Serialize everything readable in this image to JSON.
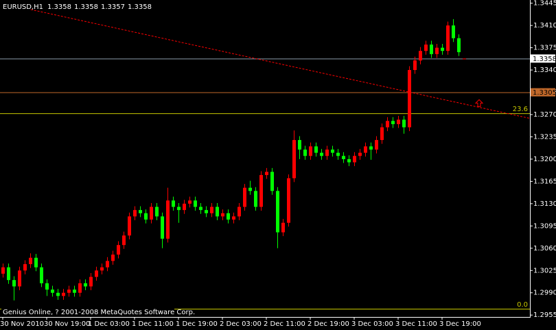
{
  "chart_data": {
    "type": "candlestick",
    "symbol": "EURUSD,H1",
    "footer": "Genius Online, ? 2001-2008 MetaQuotes Software Corp.",
    "up_color": "#ff0000",
    "down_color": "#00ff00",
    "open": [
      1.302,
      1.303,
      1.301,
      1.3,
      1.3025,
      1.3035,
      1.3045,
      1.303,
      1.3005,
      1.2995,
      1.299,
      1.2985,
      1.299,
      1.2995,
      1.299,
      1.3005,
      1.3,
      1.3015,
      1.3025,
      1.303,
      1.304,
      1.305,
      1.3065,
      1.308,
      1.311,
      1.312,
      1.3115,
      1.3105,
      1.3125,
      1.311,
      1.3075,
      1.3135,
      1.3125,
      1.312,
      1.313,
      1.3135,
      1.3125,
      1.312,
      1.3115,
      1.3125,
      1.311,
      1.3115,
      1.3105,
      1.311,
      1.3125,
      1.3155,
      1.315,
      1.3125,
      1.3175,
      1.318,
      1.315,
      1.3085,
      1.31,
      1.317,
      1.323,
      1.3215,
      1.3205,
      1.322,
      1.321,
      1.3205,
      1.3215,
      1.321,
      1.3205,
      1.32,
      1.3195,
      1.3205,
      1.321,
      1.322,
      1.3215,
      1.323,
      1.325,
      1.326,
      1.3255,
      1.3262,
      1.325,
      1.334,
      1.3355,
      1.337,
      1.338,
      1.3365,
      1.3375,
      1.337,
      1.341,
      1.339,
      1.3358
    ],
    "high": [
      1.3036,
      1.3036,
      1.3016,
      1.3031,
      1.3041,
      1.3052,
      1.3051,
      1.3036,
      1.3011,
      1.3001,
      1.2996,
      1.2996,
      1.3001,
      1.3001,
      1.3011,
      1.3011,
      1.3021,
      1.3031,
      1.3036,
      1.3046,
      1.3056,
      1.3071,
      1.3086,
      1.3116,
      1.3126,
      1.3126,
      1.3121,
      1.3131,
      1.3131,
      1.3116,
      1.3155,
      1.3141,
      1.3131,
      1.3136,
      1.3141,
      1.3141,
      1.3131,
      1.3126,
      1.3131,
      1.3131,
      1.3121,
      1.3121,
      1.3116,
      1.3131,
      1.3161,
      1.3166,
      1.3156,
      1.3181,
      1.3186,
      1.3186,
      1.3156,
      1.3106,
      1.3176,
      1.3245,
      1.3236,
      1.3221,
      1.3226,
      1.3226,
      1.3216,
      1.3221,
      1.3221,
      1.3216,
      1.3211,
      1.3206,
      1.3211,
      1.3216,
      1.3226,
      1.3226,
      1.3236,
      1.3256,
      1.3266,
      1.3266,
      1.3268,
      1.3268,
      1.3346,
      1.3361,
      1.3376,
      1.3386,
      1.3386,
      1.3381,
      1.3381,
      1.3416,
      1.342,
      1.3396,
      1.3358
    ],
    "low": [
      1.3014,
      1.3004,
      1.2978,
      1.2994,
      1.3019,
      1.3029,
      1.3024,
      1.2999,
      1.2985,
      1.2984,
      1.2979,
      1.2979,
      1.2984,
      1.2984,
      1.2984,
      1.2994,
      1.2994,
      1.3009,
      1.3019,
      1.3024,
      1.3034,
      1.3044,
      1.3059,
      1.3074,
      1.3104,
      1.3109,
      1.3099,
      1.3099,
      1.3104,
      1.306,
      1.3069,
      1.3119,
      1.31,
      1.3114,
      1.3124,
      1.3119,
      1.3114,
      1.3109,
      1.3109,
      1.3104,
      1.3104,
      1.3099,
      1.3099,
      1.3104,
      1.3119,
      1.3144,
      1.3119,
      1.3119,
      1.3169,
      1.3144,
      1.306,
      1.3079,
      1.3094,
      1.3164,
      1.32,
      1.3199,
      1.3199,
      1.3204,
      1.3199,
      1.3199,
      1.3204,
      1.3199,
      1.3194,
      1.3189,
      1.3189,
      1.3199,
      1.3204,
      1.3199,
      1.3209,
      1.3224,
      1.3244,
      1.3249,
      1.3249,
      1.324,
      1.3244,
      1.3334,
      1.3349,
      1.3364,
      1.3359,
      1.3359,
      1.3364,
      1.3364,
      1.3384,
      1.3362,
      1.3357
    ],
    "close": [
      1.303,
      1.301,
      1.3,
      1.3025,
      1.3035,
      1.3045,
      1.303,
      1.3005,
      1.2995,
      1.299,
      1.2985,
      1.299,
      1.2995,
      1.299,
      1.3005,
      1.3,
      1.3015,
      1.3025,
      1.303,
      1.304,
      1.305,
      1.3065,
      1.308,
      1.311,
      1.312,
      1.3115,
      1.3105,
      1.3125,
      1.311,
      1.3075,
      1.3135,
      1.3125,
      1.312,
      1.313,
      1.3135,
      1.3125,
      1.312,
      1.3115,
      1.3125,
      1.311,
      1.3115,
      1.3105,
      1.311,
      1.3125,
      1.3155,
      1.315,
      1.3125,
      1.3175,
      1.318,
      1.315,
      1.3085,
      1.31,
      1.317,
      1.323,
      1.3215,
      1.3205,
      1.322,
      1.321,
      1.3205,
      1.3215,
      1.321,
      1.3205,
      1.32,
      1.3195,
      1.3205,
      1.321,
      1.322,
      1.3215,
      1.323,
      1.325,
      1.326,
      1.3255,
      1.3262,
      1.325,
      1.334,
      1.3355,
      1.337,
      1.338,
      1.3365,
      1.3375,
      1.337,
      1.341,
      1.339,
      1.3368,
      1.3358
    ],
    "x_labels": [
      {
        "index": 0,
        "label": "30 Nov 2010"
      },
      {
        "index": 8,
        "label": "30 Nov 19:00"
      },
      {
        "index": 16,
        "label": "1 Dec 03:00"
      },
      {
        "index": 24,
        "label": "1 Dec 11:00"
      },
      {
        "index": 32,
        "label": "1 Dec 19:00"
      },
      {
        "index": 40,
        "label": "2 Dec 03:00"
      },
      {
        "index": 48,
        "label": "2 Dec 11:00"
      },
      {
        "index": 56,
        "label": "2 Dec 19:00"
      },
      {
        "index": 64,
        "label": "3 Dec 03:00"
      },
      {
        "index": 72,
        "label": "3 Dec 11:00"
      },
      {
        "index": 80,
        "label": "3 Dec 19:00"
      }
    ],
    "xlim": [
      -0.5,
      96
    ],
    "ylim": [
      1.2952,
      1.345
    ],
    "yticks": [
      1.3445,
      {
        "value": 1.341,
        "label": "1.3410"
      },
      1.3375,
      {
        "value": 1.334,
        "label": "1.3340"
      },
      1.3305,
      {
        "value": 1.327,
        "label": "1.3270"
      },
      1.3235,
      {
        "value": 1.32,
        "label": "1.3200"
      },
      1.3165,
      {
        "value": 1.313,
        "label": "1.3130"
      },
      1.3095,
      {
        "value": 1.306,
        "label": "1.3060"
      },
      1.3025,
      {
        "value": 1.299,
        "label": "1.2990"
      },
      1.2955
    ],
    "bid_color": "#8a9aa8",
    "level": {
      "value": 1.3305,
      "color": "#c0682a"
    },
    "fibo": {
      "color": "#c8c800",
      "levels": [
        {
          "value": 1.3272,
          "label": "23.6"
        },
        {
          "value": 1.2965,
          "label": "0.0"
        }
      ]
    },
    "trendline": {
      "from": [
        5.1,
        1.3435
      ],
      "to": [
        96,
        1.3264
      ],
      "color": "#ff0000"
    },
    "arrow": {
      "index": 86.75,
      "value": 1.3288,
      "color": "#ff0000"
    }
  }
}
